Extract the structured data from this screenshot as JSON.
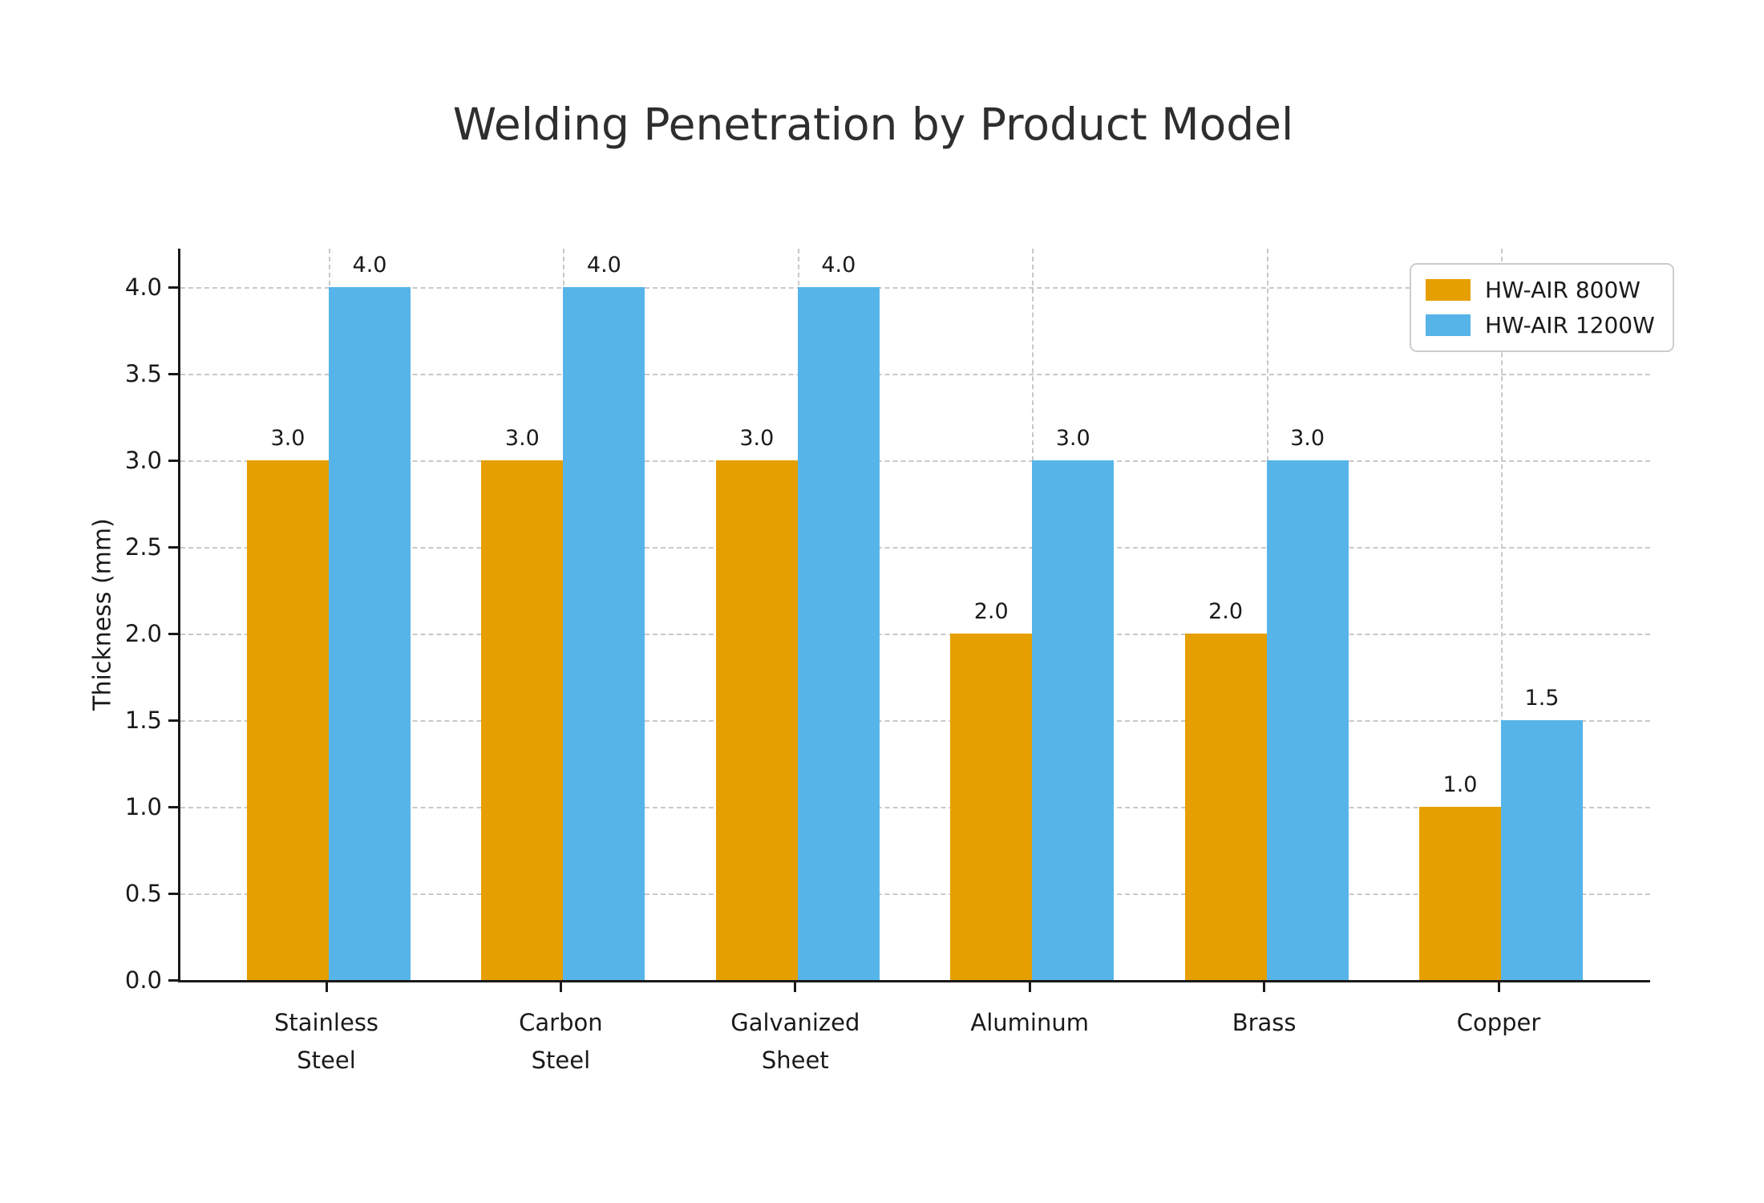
{
  "chart_data": {
    "type": "bar",
    "title": "Welding Penetration by Product Model",
    "xlabel": "",
    "ylabel": "Thickness (mm)",
    "categories": [
      "Stainless\nSteel",
      "Carbon\nSteel",
      "Galvanized\nSheet",
      "Aluminum",
      "Brass",
      "Copper"
    ],
    "series": [
      {
        "name": "HW-AIR 800W",
        "color": "#E69F00",
        "values": [
          3.0,
          3.0,
          3.0,
          2.0,
          2.0,
          1.0
        ]
      },
      {
        "name": "HW-AIR 1200W",
        "color": "#56B4E9",
        "values": [
          4.0,
          4.0,
          4.0,
          3.0,
          3.0,
          1.5
        ]
      }
    ],
    "bar_value_labels": [
      [
        "3.0",
        "3.0",
        "3.0",
        "2.0",
        "2.0",
        "1.0"
      ],
      [
        "4.0",
        "4.0",
        "4.0",
        "3.0",
        "3.0",
        "1.5"
      ]
    ],
    "yticks": [
      "0.0",
      "0.5",
      "1.0",
      "1.5",
      "2.0",
      "2.5",
      "3.0",
      "3.5",
      "4.0"
    ],
    "ylim": [
      0,
      4.22
    ],
    "grid": {
      "horizontal": true,
      "vertical": true,
      "style": "dashed",
      "color": "#c9c9c9"
    },
    "legend": {
      "position": "upper right"
    },
    "colors": {
      "axis": "#1a1a1a",
      "title_text": "#2e2e2e",
      "background": "#ffffff"
    }
  }
}
